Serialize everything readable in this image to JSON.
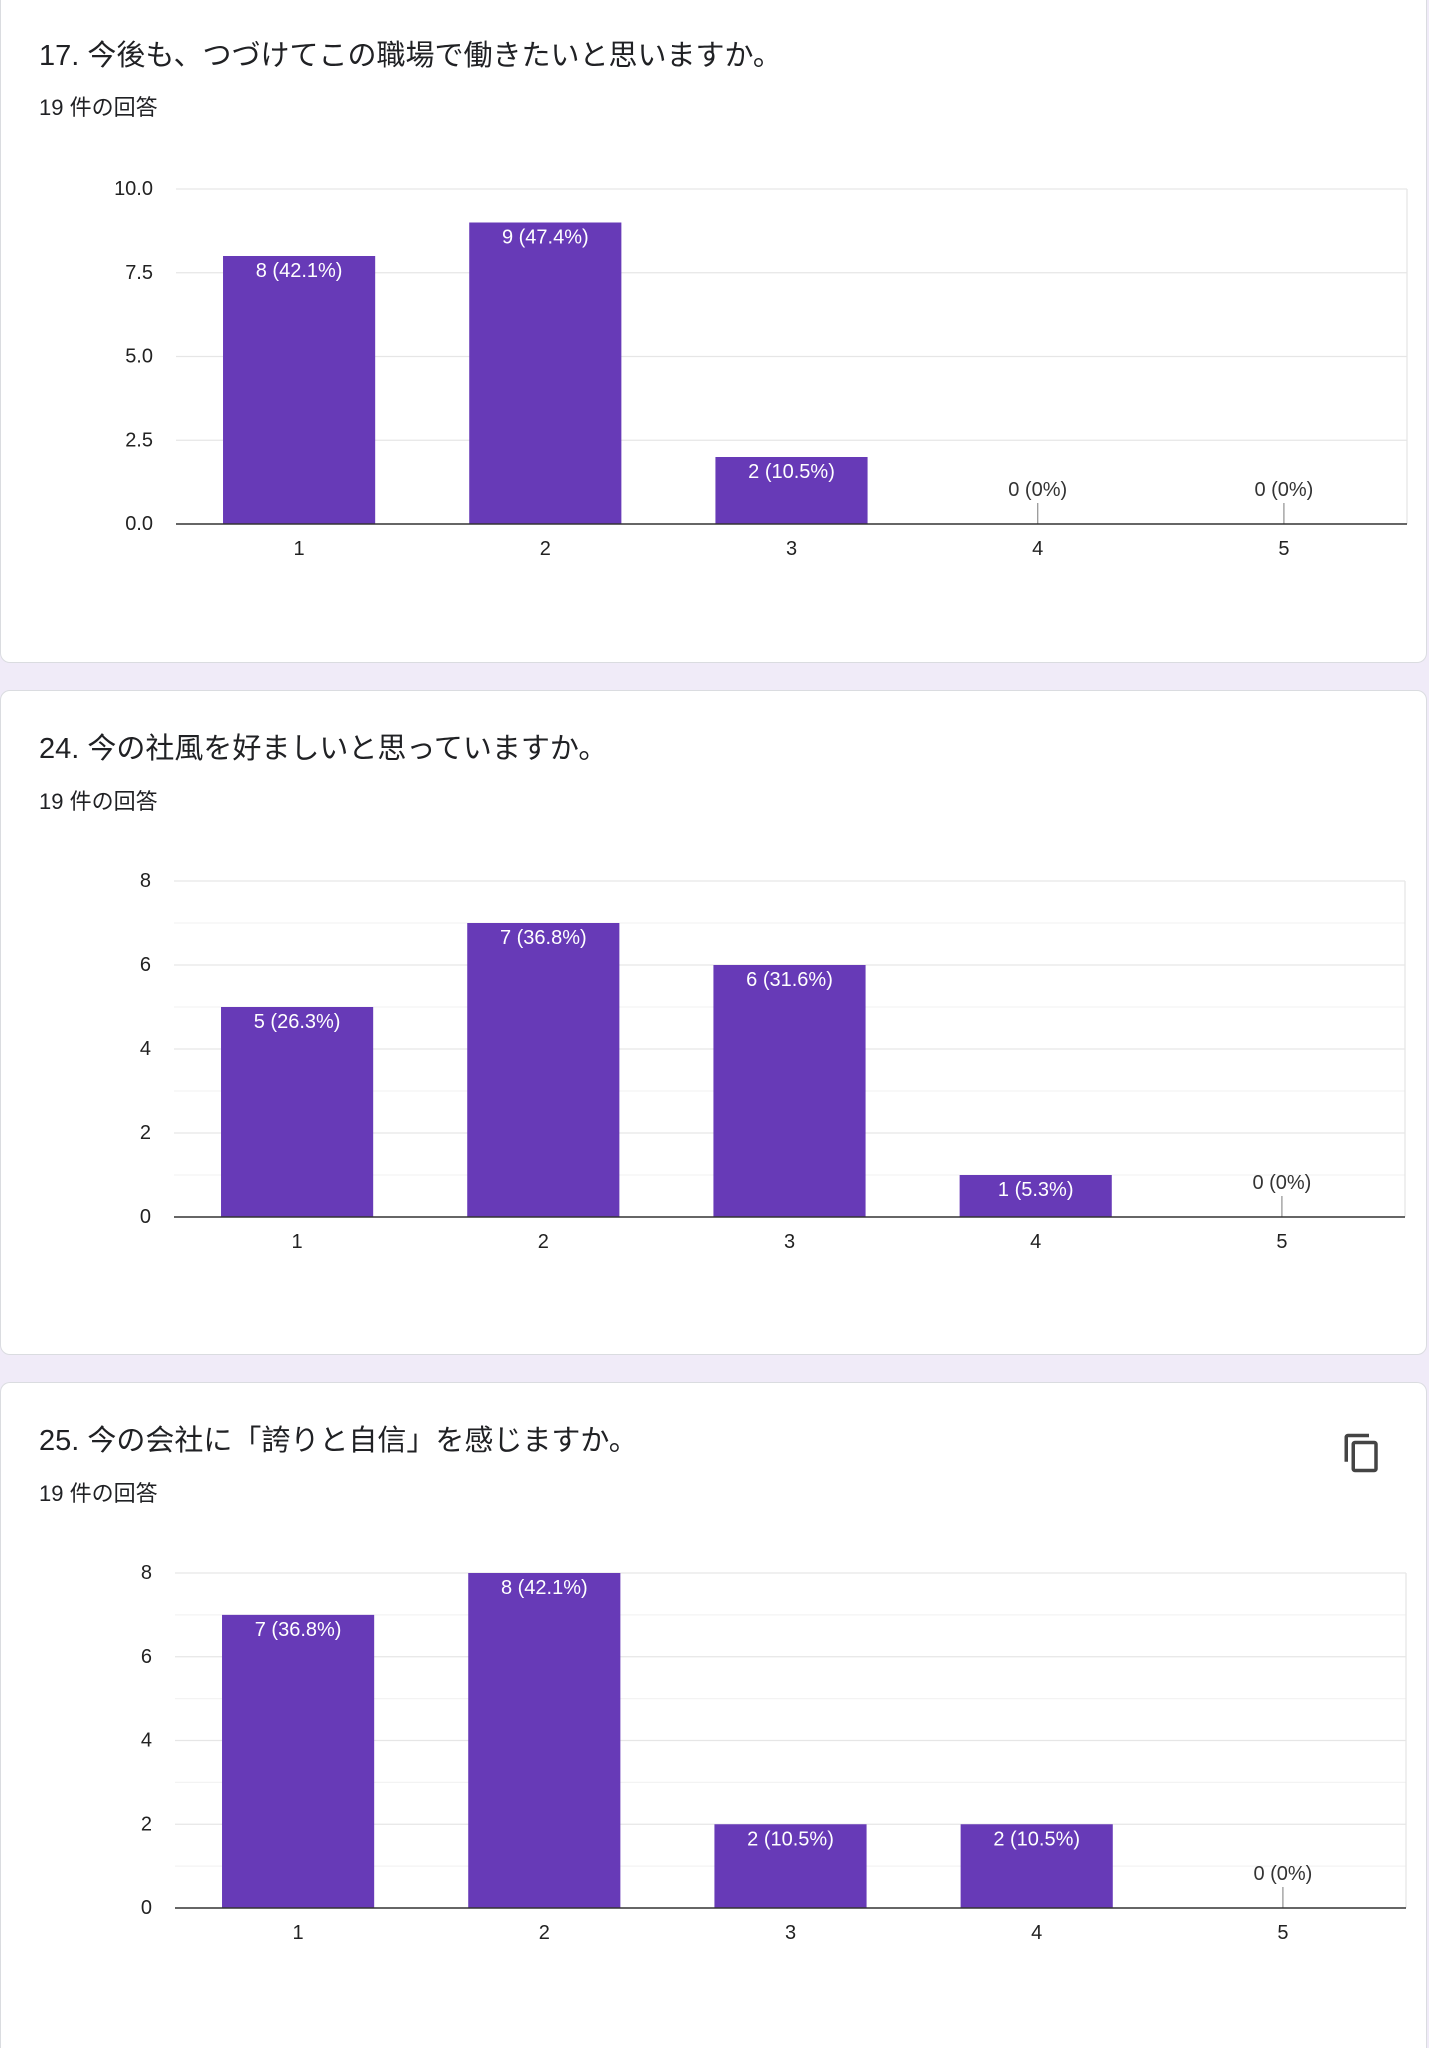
{
  "colors": {
    "background": "#f0ebf8",
    "card": "#ffffff",
    "bar": "#673ab7"
  },
  "icons": {
    "copy": "copy-icon"
  },
  "chart_data": [
    {
      "type": "bar",
      "title": "17. 今後も、つづけてこの職場で働きたいと思いますか。",
      "subtitle": "19 件の回答",
      "categories": [
        "1",
        "2",
        "3",
        "4",
        "5"
      ],
      "values": [
        8,
        9,
        2,
        0,
        0
      ],
      "data_labels": [
        "8 (42.1%)",
        "9 (47.4%)",
        "2 (10.5%)",
        "0 (0%)",
        "0 (0%)"
      ],
      "ylim": [
        0,
        10
      ],
      "yticks": [
        0,
        2.5,
        5,
        7.5,
        10
      ],
      "ytick_labels": [
        "0.0",
        "2.5",
        "5.0",
        "7.5",
        "10.0"
      ],
      "grid": true,
      "minor_grid": false,
      "legend": "none",
      "color": "#673ab7"
    },
    {
      "type": "bar",
      "title": "24. 今の社風を好ましいと思っていますか。",
      "subtitle": "19 件の回答",
      "categories": [
        "1",
        "2",
        "3",
        "4",
        "5"
      ],
      "values": [
        5,
        7,
        6,
        1,
        0
      ],
      "data_labels": [
        "5 (26.3%)",
        "7 (36.8%)",
        "6 (31.6%)",
        "1 (5.3%)",
        "0 (0%)"
      ],
      "ylim": [
        0,
        8
      ],
      "yticks": [
        0,
        2,
        4,
        6,
        8
      ],
      "ytick_labels": [
        "0",
        "2",
        "4",
        "6",
        "8"
      ],
      "grid": true,
      "minor_grid": true,
      "legend": "none",
      "color": "#673ab7"
    },
    {
      "type": "bar",
      "title": "25. 今の会社に「誇りと自信」を感じますか。",
      "subtitle": "19 件の回答",
      "categories": [
        "1",
        "2",
        "3",
        "4",
        "5"
      ],
      "values": [
        7,
        8,
        2,
        2,
        0
      ],
      "data_labels": [
        "7 (36.8%)",
        "8 (42.1%)",
        "2 (10.5%)",
        "2 (10.5%)",
        "0 (0%)"
      ],
      "ylim": [
        0,
        8
      ],
      "yticks": [
        0,
        2,
        4,
        6,
        8
      ],
      "ytick_labels": [
        "0",
        "2",
        "4",
        "6",
        "8"
      ],
      "grid": true,
      "minor_grid": true,
      "legend": "none",
      "color": "#673ab7"
    }
  ]
}
